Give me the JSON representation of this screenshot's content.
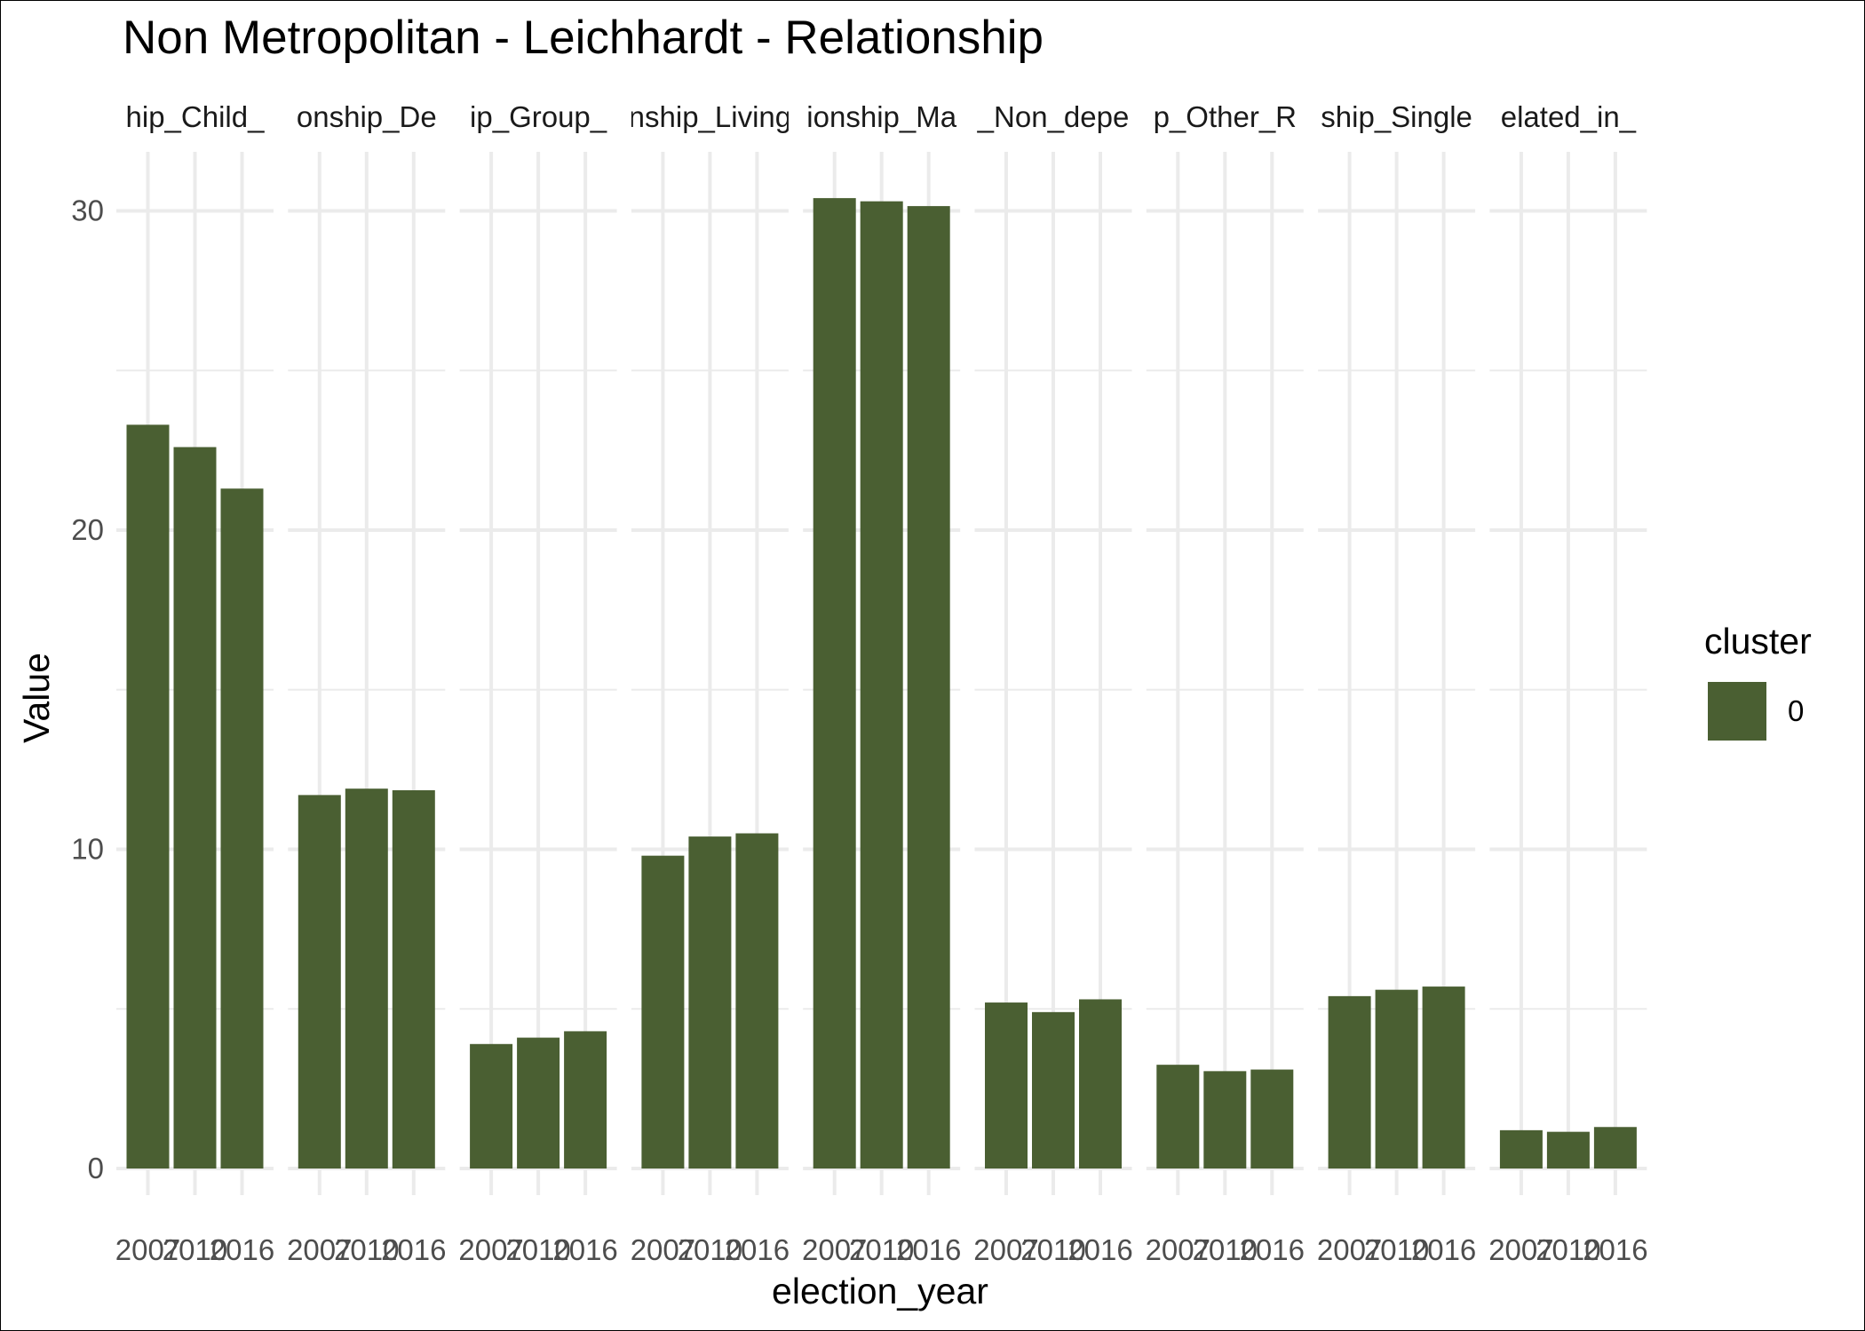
{
  "chart_data": {
    "type": "bar",
    "title": "Non Metropolitan - Leichhardt - Relationship",
    "xlabel": "election_year",
    "ylabel": "Value",
    "ylim": [
      0,
      32
    ],
    "yticks": [
      0,
      10,
      20,
      30
    ],
    "grid": true,
    "legend": {
      "title": "cluster",
      "position": "right",
      "entries": [
        {
          "label": "0",
          "color": "#4a5f32"
        }
      ]
    },
    "bar_color": "#4a5f32",
    "facets": [
      {
        "label": "hip_Child_",
        "x": [
          "2007",
          "2010",
          "2016"
        ],
        "values": [
          23.3,
          22.6,
          21.3
        ]
      },
      {
        "label": "onship_De",
        "x": [
          "2007",
          "2010",
          "2016"
        ],
        "values": [
          11.7,
          11.9,
          11.85
        ]
      },
      {
        "label": "ip_Group_",
        "x": [
          "2007",
          "2010",
          "2016"
        ],
        "values": [
          3.9,
          4.1,
          4.3
        ]
      },
      {
        "label": "nship_Living",
        "x": [
          "2007",
          "2010",
          "2016"
        ],
        "values": [
          9.8,
          10.4,
          10.5
        ]
      },
      {
        "label": "ionship_Ma",
        "x": [
          "2007",
          "2010",
          "2016"
        ],
        "values": [
          30.4,
          30.3,
          30.15
        ]
      },
      {
        "label": "_Non_depe",
        "x": [
          "2007",
          "2010",
          "2016"
        ],
        "values": [
          5.2,
          4.9,
          5.3
        ]
      },
      {
        "label": "p_Other_R",
        "x": [
          "2007",
          "2010",
          "2016"
        ],
        "values": [
          3.25,
          3.05,
          3.1
        ]
      },
      {
        "label": "ship_Single",
        "x": [
          "2007",
          "2010",
          "2016"
        ],
        "values": [
          5.4,
          5.6,
          5.7
        ]
      },
      {
        "label": "elated_in_",
        "x": [
          "2007",
          "2010",
          "2016"
        ],
        "values": [
          1.2,
          1.15,
          1.3
        ]
      }
    ]
  }
}
